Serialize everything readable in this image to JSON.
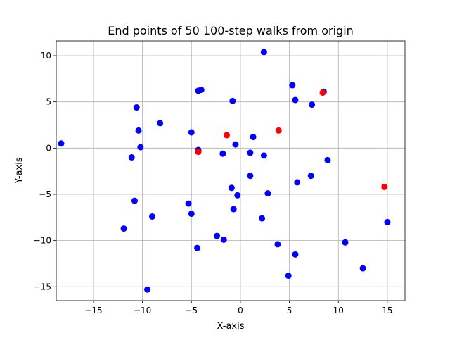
{
  "chart_data": {
    "type": "scatter",
    "title": "End points of 50 100-step walks from origin",
    "xlabel": "X-axis",
    "ylabel": "Y-axis",
    "xlim": [
      -18.8,
      16.8
    ],
    "ylim": [
      -16.5,
      11.6
    ],
    "xticks": [
      -15,
      -10,
      -5,
      0,
      5,
      10,
      15
    ],
    "yticks": [
      -15,
      -10,
      -5,
      0,
      5,
      10
    ],
    "xtick_labels": [
      "−15",
      "−10",
      "−5",
      "0",
      "5",
      "10",
      "15"
    ],
    "ytick_labels": [
      "−15",
      "−10",
      "−5",
      "0",
      "5",
      "10"
    ],
    "grid": true,
    "series": [
      {
        "color": "#0000ff",
        "points": [
          [
            -18.3,
            0.5
          ],
          [
            2.4,
            10.4
          ],
          [
            5.3,
            6.8
          ],
          [
            -4.3,
            6.2
          ],
          [
            -4.0,
            6.3
          ],
          [
            -0.8,
            5.1
          ],
          [
            5.6,
            5.2
          ],
          [
            8.5,
            6.1
          ],
          [
            7.3,
            4.7
          ],
          [
            -10.6,
            4.4
          ],
          [
            -10.4,
            1.9
          ],
          [
            -8.2,
            2.7
          ],
          [
            -5.0,
            1.7
          ],
          [
            1.3,
            1.2
          ],
          [
            -0.5,
            0.4
          ],
          [
            -10.2,
            0.1
          ],
          [
            -11.1,
            -1.0
          ],
          [
            -4.3,
            -0.2
          ],
          [
            -1.8,
            -0.6
          ],
          [
            1.0,
            -0.5
          ],
          [
            2.4,
            -0.8
          ],
          [
            8.9,
            -1.3
          ],
          [
            1.0,
            -3.0
          ],
          [
            7.2,
            -3.0
          ],
          [
            5.8,
            -3.7
          ],
          [
            -0.9,
            -4.3
          ],
          [
            -0.3,
            -5.1
          ],
          [
            2.8,
            -4.9
          ],
          [
            -10.8,
            -5.7
          ],
          [
            -5.3,
            -6.0
          ],
          [
            -5.0,
            -7.1
          ],
          [
            -0.7,
            -6.6
          ],
          [
            -9.0,
            -7.4
          ],
          [
            2.2,
            -7.6
          ],
          [
            15.0,
            -8.0
          ],
          [
            -11.9,
            -8.7
          ],
          [
            -2.4,
            -9.5
          ],
          [
            -1.7,
            -9.9
          ],
          [
            3.8,
            -10.4
          ],
          [
            10.7,
            -10.2
          ],
          [
            -4.4,
            -10.8
          ],
          [
            5.6,
            -11.5
          ],
          [
            12.5,
            -13.0
          ],
          [
            4.9,
            -13.8
          ],
          [
            -9.5,
            -15.3
          ]
        ]
      },
      {
        "color": "#ff0000",
        "points": [
          [
            -1.4,
            1.4
          ],
          [
            3.9,
            1.9
          ],
          [
            8.4,
            6.0
          ],
          [
            -4.3,
            -0.4
          ],
          [
            14.7,
            -4.2
          ]
        ]
      }
    ]
  }
}
